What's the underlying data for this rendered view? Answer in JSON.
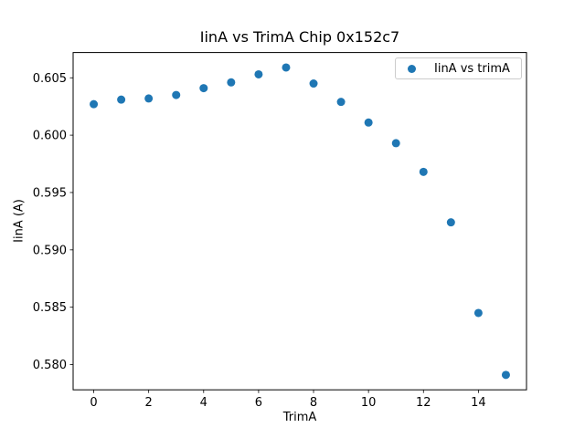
{
  "figure": {
    "title": "IinA vs TrimA Chip 0x152c7"
  },
  "chart_data": {
    "type": "scatter",
    "title": "IinA vs TrimA Chip 0x152c7",
    "xlabel": "TrimA",
    "ylabel": "IinA (A)",
    "legend": {
      "label": "IinA vs trimA",
      "position": "upper right"
    },
    "marker_color": "#1f77b4",
    "axis_color": "#000000",
    "background_color": "#ffffff",
    "grid": false,
    "x": [
      0,
      1,
      2,
      3,
      4,
      5,
      6,
      7,
      8,
      9,
      10,
      11,
      12,
      13,
      14,
      15
    ],
    "y": [
      0.6027,
      0.6031,
      0.6032,
      0.6035,
      0.6041,
      0.6046,
      0.6053,
      0.6059,
      0.6045,
      0.6029,
      0.6011,
      0.5993,
      0.5968,
      0.5924,
      0.5845,
      0.5791
    ],
    "x_ticks": [
      0,
      2,
      4,
      6,
      8,
      10,
      12,
      14
    ],
    "y_ticks": [
      0.58,
      0.585,
      0.59,
      0.595,
      0.6,
      0.605
    ],
    "xlim": [
      -0.75,
      15.75
    ],
    "ylim": [
      0.5778,
      0.6072
    ]
  }
}
